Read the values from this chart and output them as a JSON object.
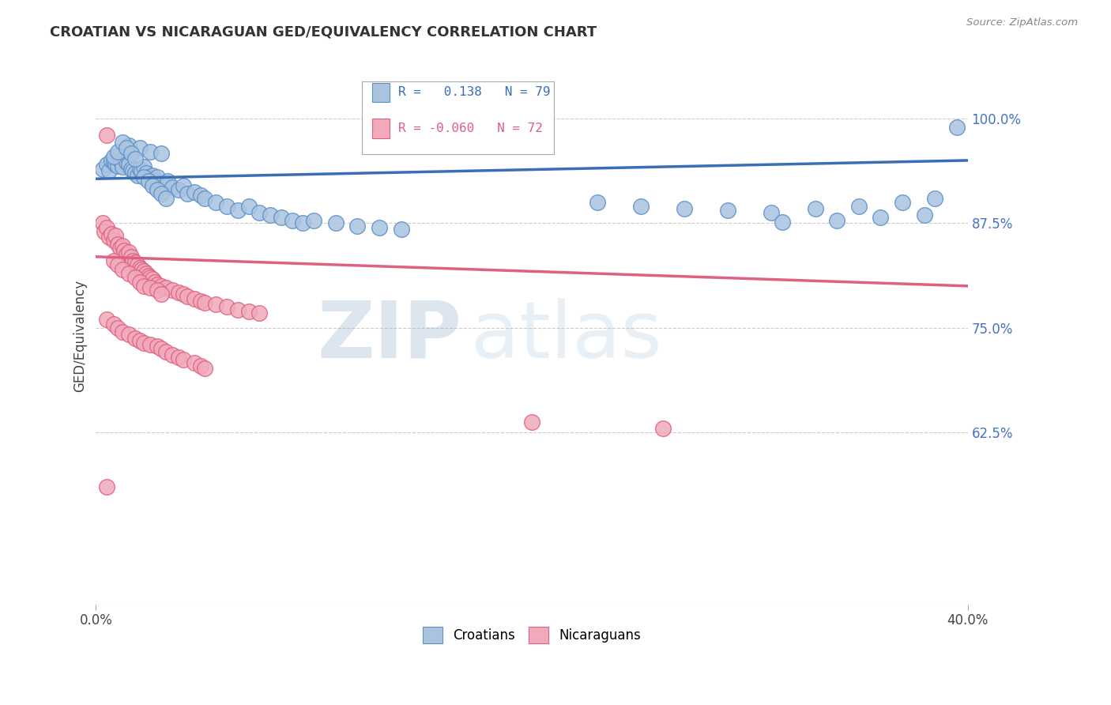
{
  "title": "CROATIAN VS NICARAGUAN GED/EQUIVALENCY CORRELATION CHART",
  "source": "Source: ZipAtlas.com",
  "ylabel": "GED/Equivalency",
  "ytick_labels": [
    "100.0%",
    "87.5%",
    "75.0%",
    "62.5%"
  ],
  "ytick_values": [
    1.0,
    0.875,
    0.75,
    0.625
  ],
  "xlim": [
    0.0,
    0.4
  ],
  "ylim": [
    0.42,
    1.06
  ],
  "blue_R": 0.138,
  "blue_N": 79,
  "pink_R": -0.06,
  "pink_N": 72,
  "blue_color": "#aac4e0",
  "pink_color": "#f0aabb",
  "blue_edge_color": "#5b8fc9",
  "pink_edge_color": "#e06080",
  "blue_line_color": "#3a6eb5",
  "pink_line_color": "#e06080",
  "legend_blue_label": "Croatians",
  "legend_pink_label": "Nicaraguans",
  "watermark_zip": "ZIP",
  "watermark_atlas": "atlas",
  "blue_trend_x": [
    0.0,
    0.4
  ],
  "blue_trend_y": [
    0.928,
    0.95
  ],
  "pink_trend_x": [
    0.0,
    0.4
  ],
  "pink_trend_y": [
    0.835,
    0.8
  ],
  "blue_dots": [
    [
      0.003,
      0.94
    ],
    [
      0.005,
      0.945
    ],
    [
      0.006,
      0.938
    ],
    [
      0.007,
      0.95
    ],
    [
      0.008,
      0.948
    ],
    [
      0.009,
      0.945
    ],
    [
      0.01,
      0.943
    ],
    [
      0.011,
      0.95
    ],
    [
      0.012,
      0.942
    ],
    [
      0.013,
      0.955
    ],
    [
      0.014,
      0.948
    ],
    [
      0.015,
      0.945
    ],
    [
      0.016,
      0.94
    ],
    [
      0.017,
      0.938
    ],
    [
      0.018,
      0.935
    ],
    [
      0.019,
      0.932
    ],
    [
      0.02,
      0.94
    ],
    [
      0.021,
      0.938
    ],
    [
      0.022,
      0.942
    ],
    [
      0.023,
      0.935
    ],
    [
      0.024,
      0.93
    ],
    [
      0.025,
      0.928
    ],
    [
      0.026,
      0.932
    ],
    [
      0.027,
      0.925
    ],
    [
      0.028,
      0.93
    ],
    [
      0.03,
      0.922
    ],
    [
      0.032,
      0.92
    ],
    [
      0.033,
      0.925
    ],
    [
      0.035,
      0.918
    ],
    [
      0.038,
      0.915
    ],
    [
      0.04,
      0.92
    ],
    [
      0.042,
      0.91
    ],
    [
      0.045,
      0.912
    ],
    [
      0.048,
      0.908
    ],
    [
      0.05,
      0.905
    ],
    [
      0.055,
      0.9
    ],
    [
      0.06,
      0.895
    ],
    [
      0.065,
      0.89
    ],
    [
      0.07,
      0.895
    ],
    [
      0.075,
      0.888
    ],
    [
      0.08,
      0.885
    ],
    [
      0.085,
      0.882
    ],
    [
      0.09,
      0.878
    ],
    [
      0.095,
      0.875
    ],
    [
      0.1,
      0.878
    ],
    [
      0.11,
      0.875
    ],
    [
      0.12,
      0.872
    ],
    [
      0.13,
      0.87
    ],
    [
      0.14,
      0.868
    ],
    [
      0.015,
      0.968
    ],
    [
      0.02,
      0.965
    ],
    [
      0.025,
      0.96
    ],
    [
      0.03,
      0.958
    ],
    [
      0.008,
      0.955
    ],
    [
      0.01,
      0.96
    ],
    [
      0.012,
      0.972
    ],
    [
      0.014,
      0.965
    ],
    [
      0.016,
      0.958
    ],
    [
      0.018,
      0.952
    ],
    [
      0.022,
      0.93
    ],
    [
      0.024,
      0.925
    ],
    [
      0.026,
      0.92
    ],
    [
      0.028,
      0.915
    ],
    [
      0.03,
      0.91
    ],
    [
      0.032,
      0.905
    ],
    [
      0.23,
      0.9
    ],
    [
      0.25,
      0.895
    ],
    [
      0.27,
      0.892
    ],
    [
      0.29,
      0.89
    ],
    [
      0.31,
      0.888
    ],
    [
      0.33,
      0.892
    ],
    [
      0.35,
      0.895
    ],
    [
      0.37,
      0.9
    ],
    [
      0.385,
      0.905
    ],
    [
      0.395,
      0.99
    ],
    [
      0.38,
      0.885
    ],
    [
      0.36,
      0.882
    ],
    [
      0.34,
      0.878
    ],
    [
      0.315,
      0.876
    ]
  ],
  "pink_dots": [
    [
      0.003,
      0.875
    ],
    [
      0.004,
      0.865
    ],
    [
      0.005,
      0.87
    ],
    [
      0.006,
      0.858
    ],
    [
      0.007,
      0.862
    ],
    [
      0.008,
      0.855
    ],
    [
      0.009,
      0.86
    ],
    [
      0.01,
      0.85
    ],
    [
      0.011,
      0.845
    ],
    [
      0.012,
      0.848
    ],
    [
      0.013,
      0.842
    ],
    [
      0.014,
      0.838
    ],
    [
      0.015,
      0.84
    ],
    [
      0.016,
      0.835
    ],
    [
      0.017,
      0.83
    ],
    [
      0.018,
      0.828
    ],
    [
      0.019,
      0.825
    ],
    [
      0.02,
      0.822
    ],
    [
      0.021,
      0.82
    ],
    [
      0.022,
      0.818
    ],
    [
      0.023,
      0.815
    ],
    [
      0.024,
      0.812
    ],
    [
      0.025,
      0.81
    ],
    [
      0.026,
      0.808
    ],
    [
      0.027,
      0.805
    ],
    [
      0.028,
      0.802
    ],
    [
      0.03,
      0.8
    ],
    [
      0.032,
      0.798
    ],
    [
      0.035,
      0.795
    ],
    [
      0.038,
      0.792
    ],
    [
      0.04,
      0.79
    ],
    [
      0.042,
      0.788
    ],
    [
      0.045,
      0.785
    ],
    [
      0.048,
      0.782
    ],
    [
      0.05,
      0.78
    ],
    [
      0.055,
      0.778
    ],
    [
      0.06,
      0.775
    ],
    [
      0.065,
      0.772
    ],
    [
      0.07,
      0.77
    ],
    [
      0.075,
      0.768
    ],
    [
      0.008,
      0.83
    ],
    [
      0.01,
      0.825
    ],
    [
      0.012,
      0.82
    ],
    [
      0.015,
      0.815
    ],
    [
      0.018,
      0.81
    ],
    [
      0.02,
      0.805
    ],
    [
      0.022,
      0.8
    ],
    [
      0.025,
      0.798
    ],
    [
      0.028,
      0.795
    ],
    [
      0.03,
      0.79
    ],
    [
      0.005,
      0.76
    ],
    [
      0.008,
      0.755
    ],
    [
      0.01,
      0.75
    ],
    [
      0.012,
      0.745
    ],
    [
      0.015,
      0.742
    ],
    [
      0.018,
      0.738
    ],
    [
      0.02,
      0.735
    ],
    [
      0.022,
      0.732
    ],
    [
      0.025,
      0.73
    ],
    [
      0.028,
      0.728
    ],
    [
      0.03,
      0.725
    ],
    [
      0.032,
      0.722
    ],
    [
      0.035,
      0.718
    ],
    [
      0.038,
      0.715
    ],
    [
      0.04,
      0.712
    ],
    [
      0.045,
      0.708
    ],
    [
      0.048,
      0.705
    ],
    [
      0.05,
      0.702
    ],
    [
      0.2,
      0.638
    ],
    [
      0.26,
      0.63
    ],
    [
      0.005,
      0.98
    ],
    [
      0.005,
      0.56
    ]
  ]
}
